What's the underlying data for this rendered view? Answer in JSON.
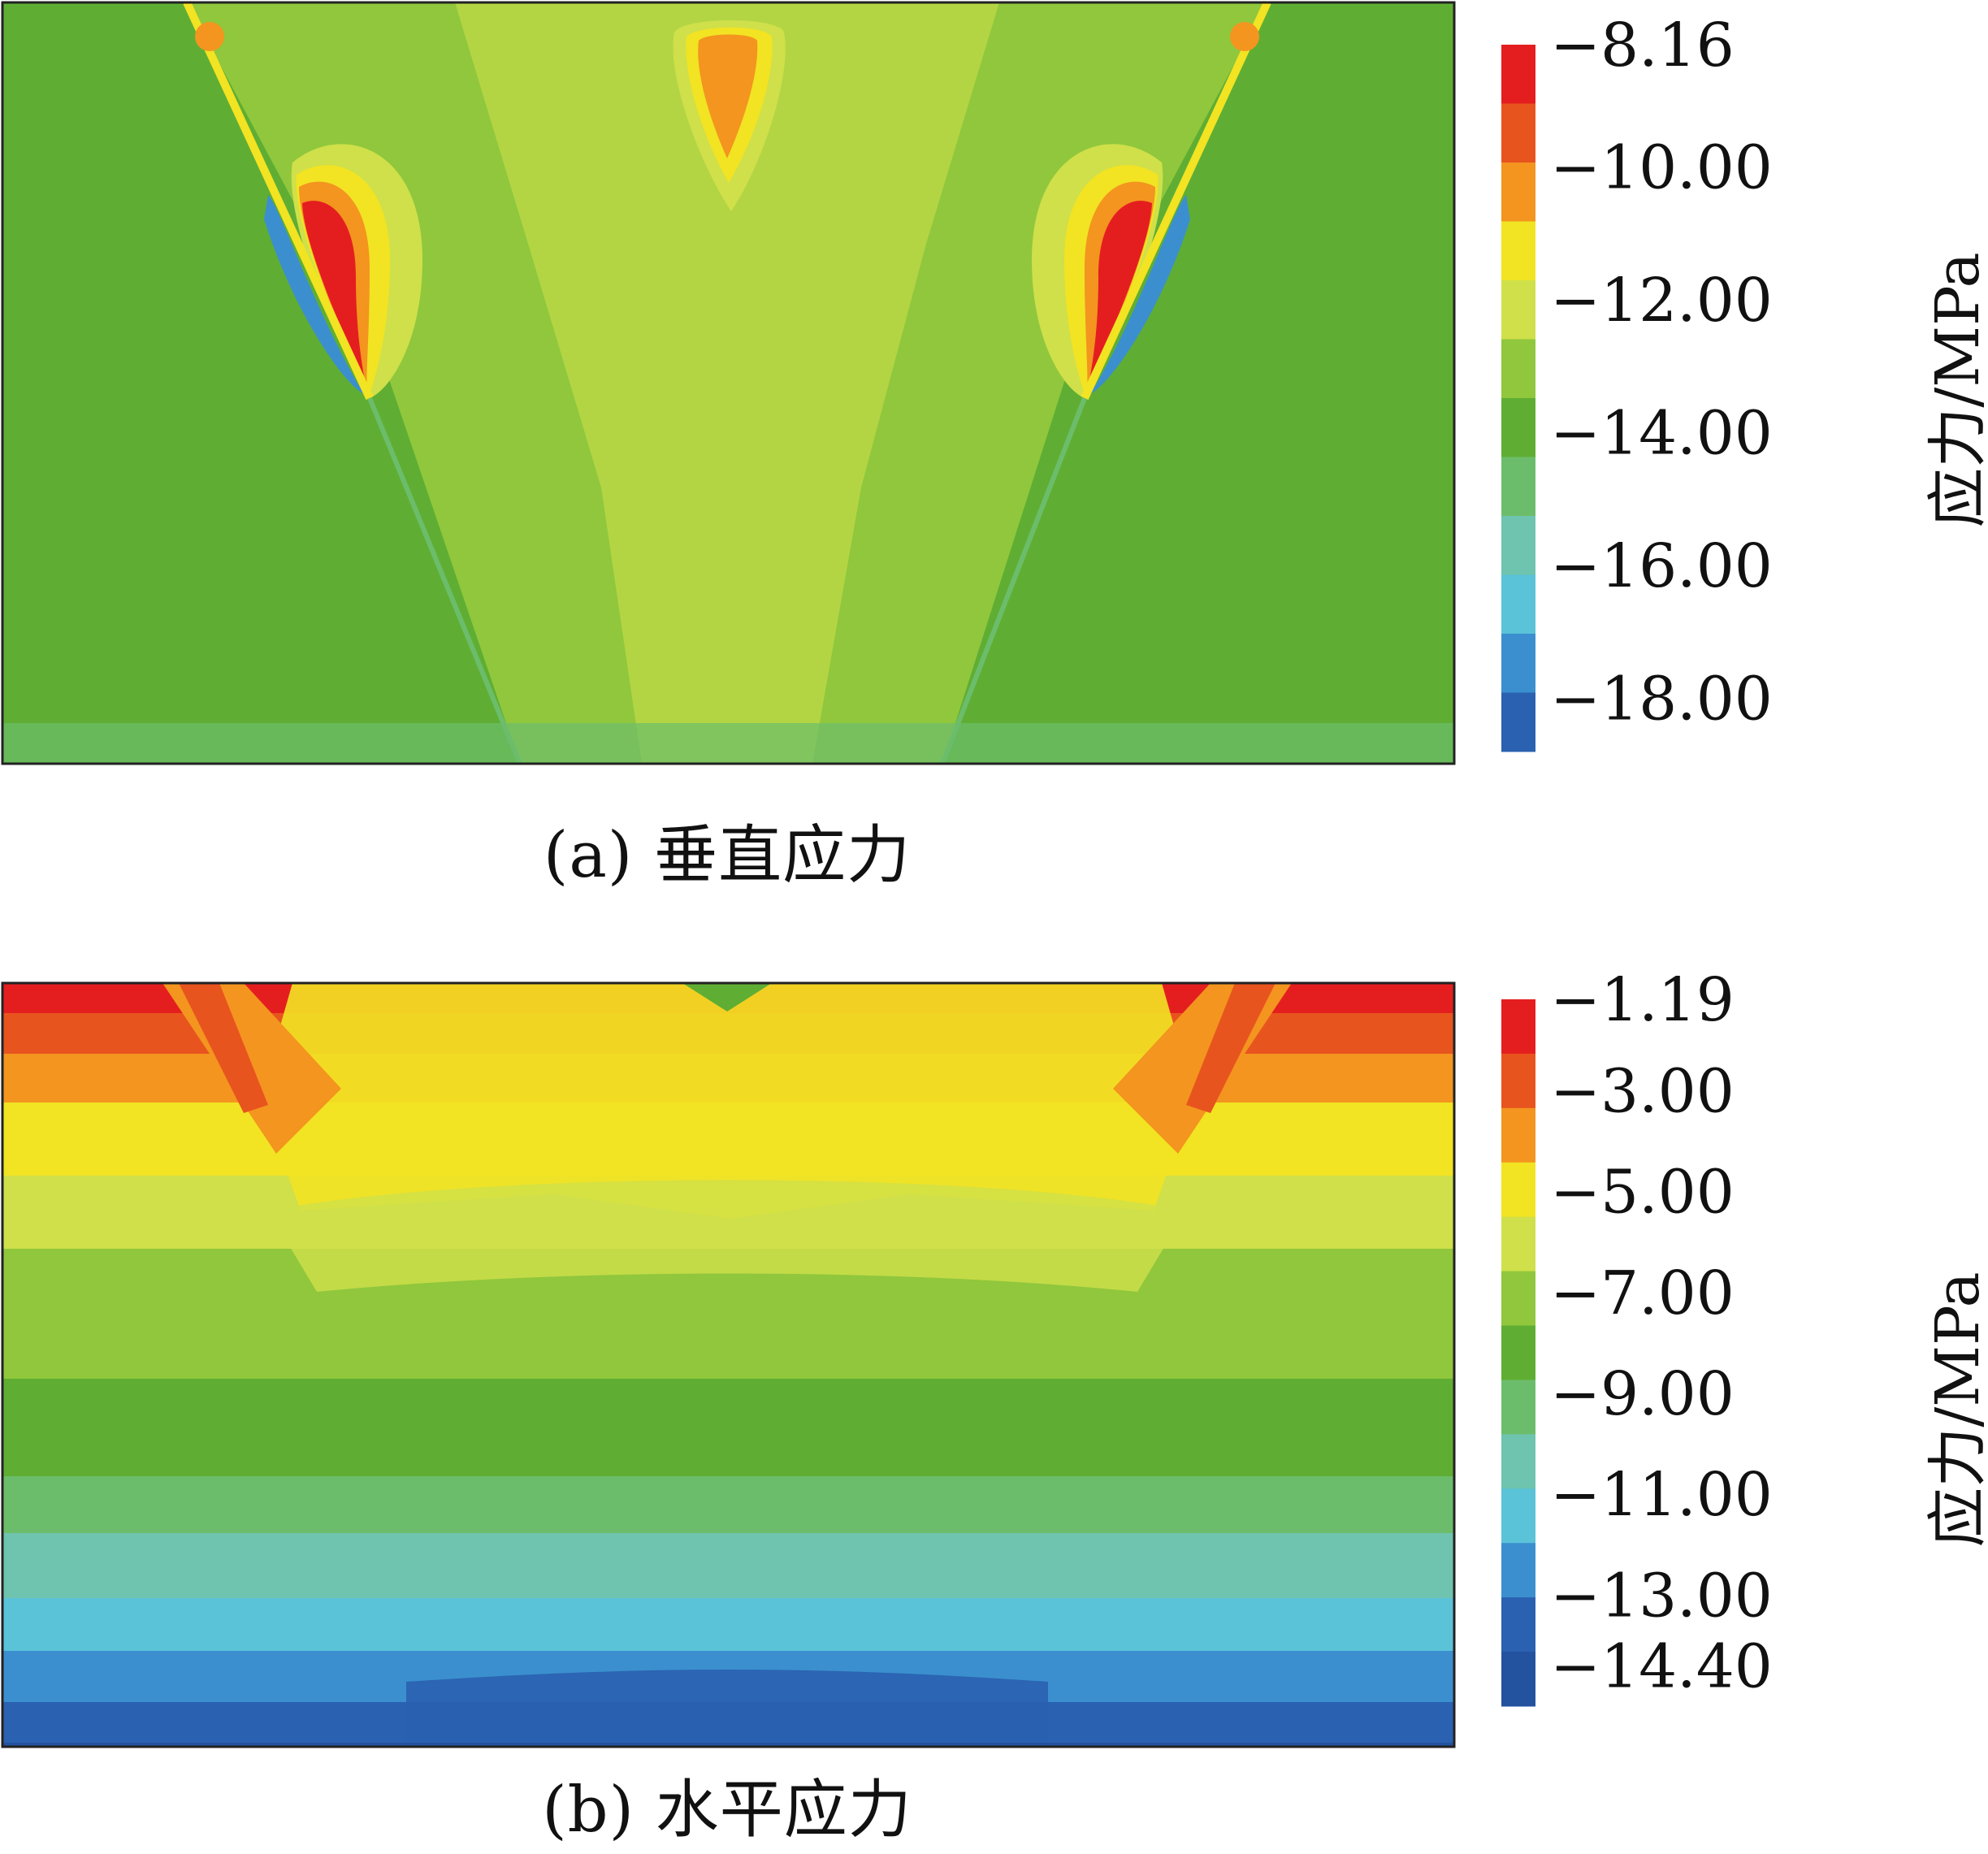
{
  "chart_data": [
    {
      "type": "heatmap",
      "caption": "(a) 垂直应力",
      "colorbar": {
        "label": "应力/MPa",
        "ticks": [
          "−8.16",
          "−10.00",
          "−12.00",
          "−14.00",
          "−16.00",
          "−18.00"
        ],
        "tick_values": [
          -8.16,
          -10.0,
          -12.0,
          -14.0,
          -16.0,
          -18.0
        ],
        "range": [
          -18.8,
          -8.16
        ],
        "colors": [
          "#e41e1f",
          "#e8541e",
          "#f3951f",
          "#f2e323",
          "#cfe04a",
          "#90c73c",
          "#5fae33",
          "#6cbd6b",
          "#6ec4ae",
          "#5bc3d8",
          "#3b8fce",
          "#2a61b0"
        ]
      }
    },
    {
      "type": "heatmap",
      "caption": "(b) 水平应力",
      "colorbar": {
        "label": "应力/MPa",
        "ticks": [
          "−1.19",
          "−3.00",
          "−5.00",
          "−7.00",
          "−9.00",
          "−11.00",
          "−13.00",
          "−14.40"
        ],
        "tick_values": [
          -1.19,
          -3.0,
          -5.0,
          -7.0,
          -9.0,
          -11.0,
          -13.0,
          -14.4
        ],
        "range": [
          -15.2,
          -1.19
        ],
        "colors": [
          "#e41e1f",
          "#e8541e",
          "#f3951f",
          "#f2e323",
          "#cfe04a",
          "#90c73c",
          "#5fae33",
          "#6cbd6b",
          "#6ec4ae",
          "#5bc3d8",
          "#3b8fce",
          "#2a61b0",
          "#23529f"
        ]
      }
    }
  ]
}
